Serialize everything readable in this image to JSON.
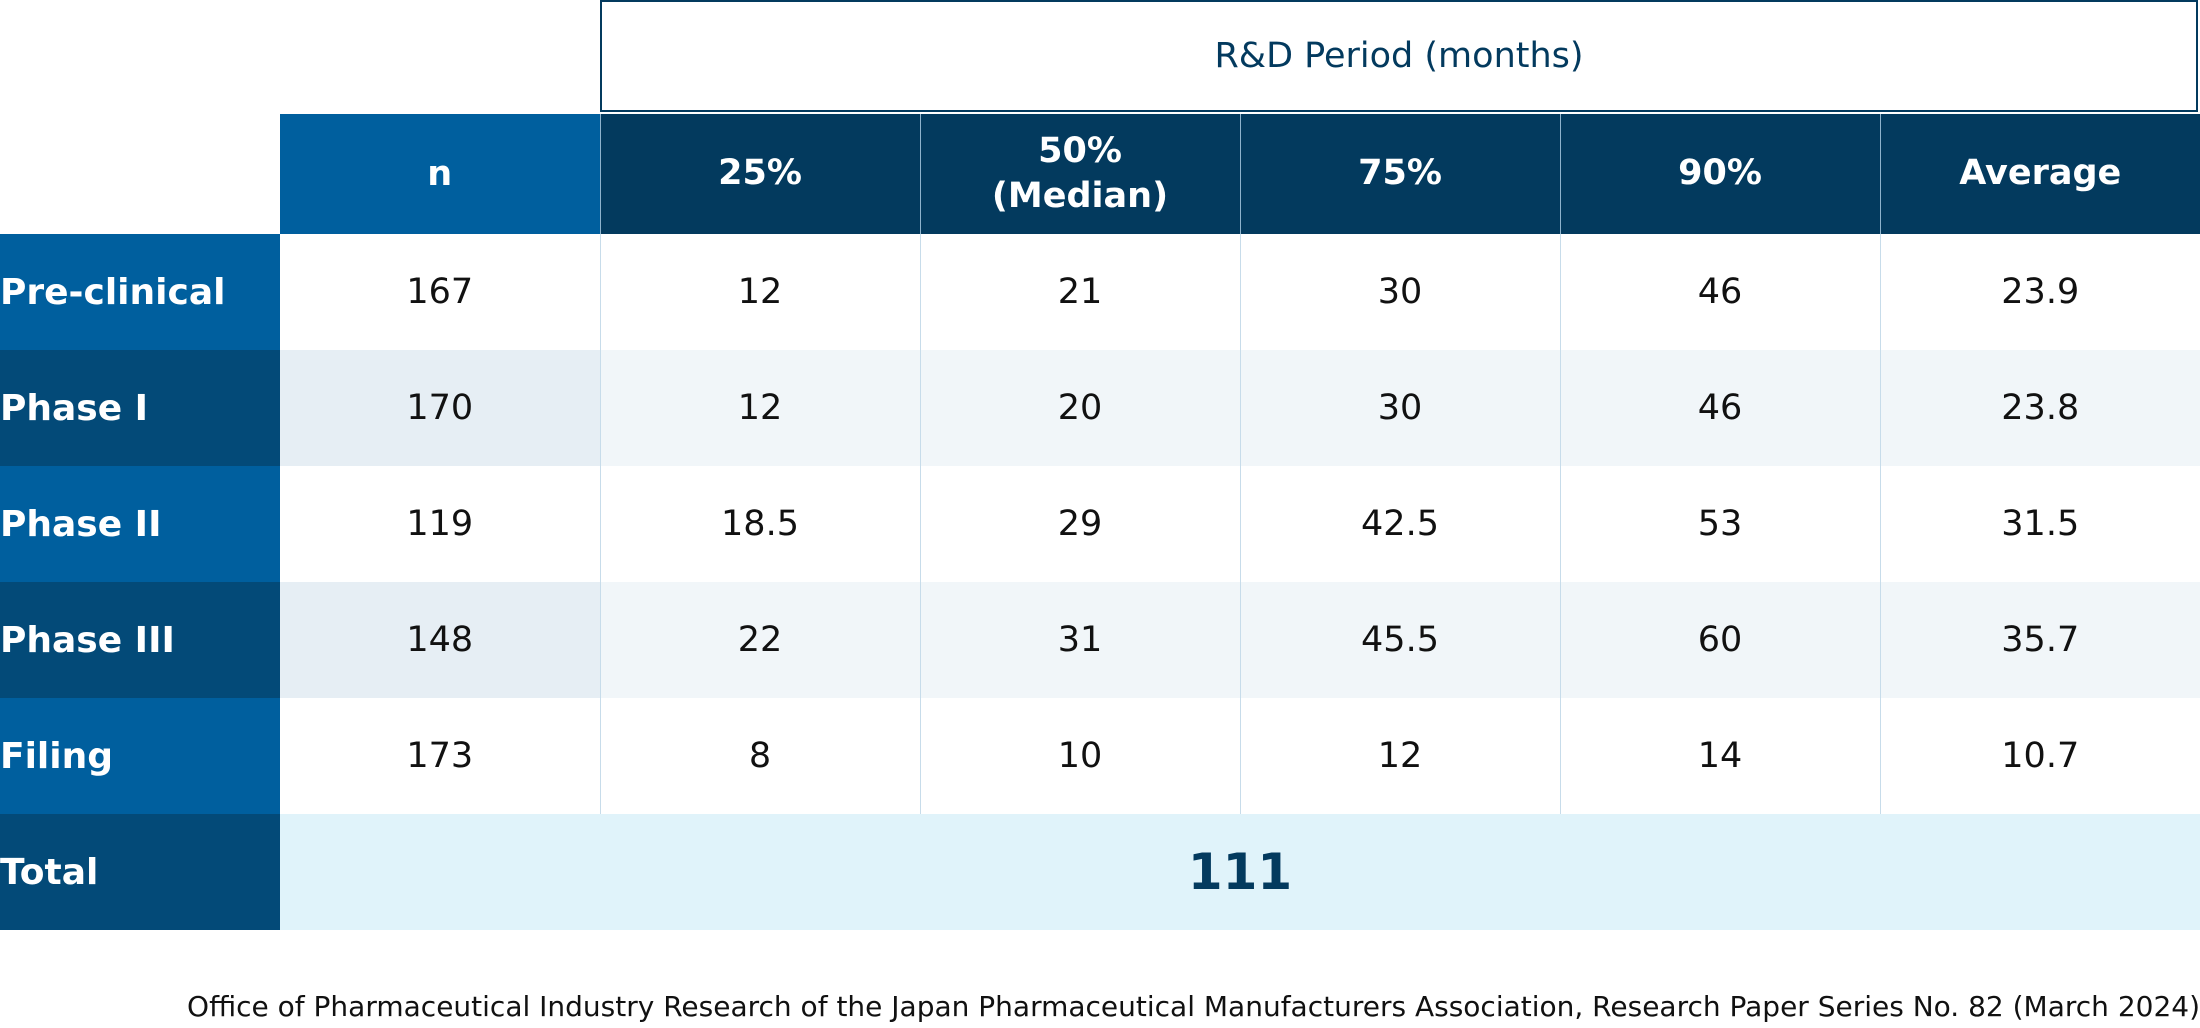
{
  "header": {
    "period_title": "R&D Period (months)"
  },
  "columns": {
    "n": "n",
    "p25": "25%",
    "p50_line1": "50%",
    "p50_line2": "(Median)",
    "p75": "75%",
    "p90": "90%",
    "avg": "Average"
  },
  "rows": [
    {
      "label": "Pre-clinical",
      "n": "167",
      "p25": "12",
      "p50": "21",
      "p75": "30",
      "p90": "46",
      "avg": "23.9"
    },
    {
      "label": "Phase I",
      "n": "170",
      "p25": "12",
      "p50": "20",
      "p75": "30",
      "p90": "46",
      "avg": "23.8"
    },
    {
      "label": "Phase II",
      "n": "119",
      "p25": "18.5",
      "p50": "29",
      "p75": "42.5",
      "p90": "53",
      "avg": "31.5"
    },
    {
      "label": "Phase III",
      "n": "148",
      "p25": "22",
      "p50": "31",
      "p75": "45.5",
      "p90": "60",
      "avg": "35.7"
    },
    {
      "label": "Filing",
      "n": "173",
      "p25": "8",
      "p50": "10",
      "p75": "12",
      "p90": "14",
      "avg": "10.7"
    }
  ],
  "total": {
    "label": "Total",
    "value": "111"
  },
  "source": "Office of Pharmaceutical Industry Research of the Japan Pharmaceutical Manufacturers Association, Research Paper Series No. 82 (March 2024)",
  "colors": {
    "navy": "#033a5e",
    "blue": "#005f9e",
    "total_bg": "#e0f3fa"
  }
}
